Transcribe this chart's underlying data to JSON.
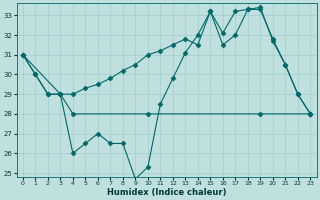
{
  "background_color": "#c0e0e0",
  "grid_color": "#a0cccc",
  "line_color": "#006868",
  "xlabel": "Humidex (Indice chaleur)",
  "ylim": [
    24.8,
    33.6
  ],
  "xlim": [
    -0.5,
    23.5
  ],
  "yticks": [
    25,
    26,
    27,
    28,
    29,
    30,
    31,
    32,
    33
  ],
  "xtick_labels": [
    "0",
    "1",
    "2",
    "3",
    "4",
    "5",
    "6",
    "7",
    "8",
    "9",
    "10",
    "11",
    "12",
    "13",
    "14",
    "15",
    "16",
    "17",
    "18",
    "19",
    "20",
    "21",
    "22",
    "23"
  ],
  "line1_x": [
    0,
    1,
    2,
    3,
    4,
    5,
    6,
    7,
    8,
    9,
    10,
    11,
    12,
    13,
    14,
    15,
    16,
    17,
    18,
    19,
    20,
    21,
    22,
    23
  ],
  "line1_y": [
    31.0,
    30.0,
    29.0,
    29.0,
    29.0,
    29.3,
    29.5,
    29.8,
    30.2,
    30.5,
    31.0,
    31.2,
    31.5,
    31.8,
    31.5,
    33.2,
    31.5,
    32.0,
    33.3,
    33.3,
    31.8,
    30.5,
    29.0,
    28.0
  ],
  "line2_x": [
    0,
    3,
    4,
    10,
    19,
    23
  ],
  "line2_y": [
    31.0,
    29.0,
    28.0,
    28.0,
    28.0,
    28.0
  ],
  "line3_x": [
    0,
    1,
    2,
    3,
    4,
    5,
    6,
    7,
    8,
    9,
    10,
    11,
    12,
    13,
    14,
    15,
    16,
    17,
    18,
    19,
    20,
    21,
    22,
    23
  ],
  "line3_y": [
    31.0,
    30.0,
    29.0,
    29.0,
    26.0,
    26.5,
    27.0,
    26.5,
    26.5,
    24.7,
    25.3,
    28.5,
    29.8,
    31.1,
    32.0,
    33.2,
    32.1,
    33.2,
    33.3,
    33.4,
    31.7,
    30.5,
    29.0,
    28.0
  ]
}
